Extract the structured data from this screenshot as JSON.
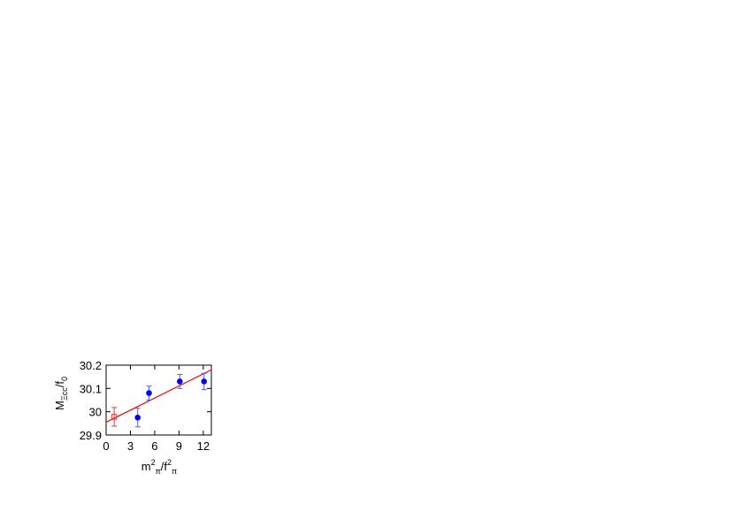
{
  "chart_data": {
    "type": "scatter",
    "xlabel": {
      "base": "m",
      "sup1": "2",
      "sub1": "π",
      "slash": "/f",
      "sup2": "2",
      "sub2": "π"
    },
    "ylabel": {
      "base": "M",
      "sub": "Ξcc",
      "rest": "/f",
      "rest_sub": "0"
    },
    "xlim": [
      0,
      13
    ],
    "ylim": [
      29.9,
      30.2
    ],
    "xticks": [
      0,
      3,
      6,
      9,
      12
    ],
    "yticks": [
      29.9,
      30.0,
      30.1,
      30.2
    ],
    "xtick_labels": [
      "0",
      "3",
      "6",
      "9",
      "12"
    ],
    "ytick_labels": [
      "29.9",
      "30",
      "30.1",
      "30.2"
    ],
    "grid": false,
    "series": [
      {
        "marker": "filled-circle",
        "color": "#0000ee",
        "errorbar_color": "#5555ff",
        "points": [
          {
            "x": 3.9,
            "y": 29.975,
            "err": 0.04
          },
          {
            "x": 5.3,
            "y": 30.08,
            "err": 0.03
          },
          {
            "x": 9.1,
            "y": 30.13,
            "err": 0.03
          },
          {
            "x": 12.1,
            "y": 30.13,
            "err": 0.035
          }
        ]
      },
      {
        "marker": "open-square",
        "color": "#ee3333",
        "points": [
          {
            "x": 1.0,
            "y": 29.978,
            "err": 0.04
          }
        ]
      }
    ],
    "fit_line": {
      "color": "#ee0000",
      "x": [
        0,
        13
      ],
      "y": [
        29.955,
        30.18
      ]
    }
  }
}
